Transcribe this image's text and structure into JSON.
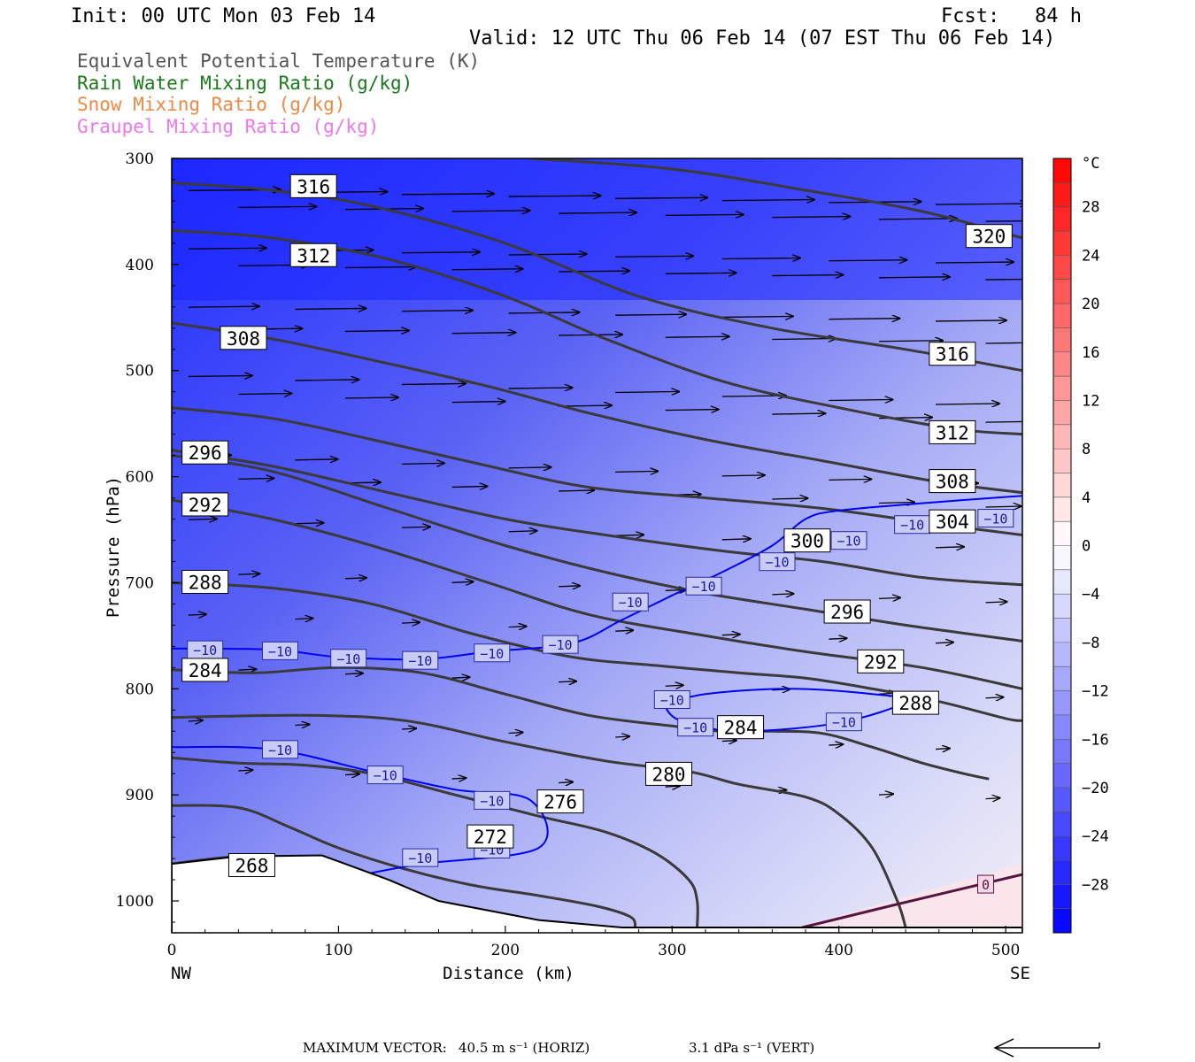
{
  "header": {
    "init": "Init: 00 UTC Mon 03 Feb 14",
    "fcst": "Fcst:   84 h",
    "valid": "Valid: 12 UTC Thu 06 Feb 14 (07 EST Thu 06 Feb 14)"
  },
  "legend": [
    {
      "text": "Equivalent Potential Temperature (K)",
      "color": "#555555"
    },
    {
      "text": "Rain Water Mixing Ratio (g/kg)",
      "color": "#1a7a1a"
    },
    {
      "text": "Snow Mixing Ratio (g/kg)",
      "color": "#ee8844"
    },
    {
      "text": "Graupel Mixing Ratio (g/kg)",
      "color": "#ee77ee"
    }
  ],
  "footer": {
    "max_vector_label": "MAXIMUM VECTOR:",
    "horiz": "40.5 m s⁻¹ (HORIZ)",
    "vert": "3.1 dPa s⁻¹ (VERT)"
  },
  "chart_data": {
    "type": "heatmap",
    "title": "",
    "xlabel": "Distance (km)",
    "ylabel": "Pressure (hPa)",
    "x_left_label": "NW",
    "x_right_label": "SE",
    "xlim": [
      0,
      510
    ],
    "ylim": [
      1030,
      300
    ],
    "x_ticks": [
      0,
      100,
      200,
      300,
      400,
      500
    ],
    "y_ticks": [
      300,
      400,
      500,
      600,
      700,
      800,
      900,
      1000
    ],
    "colorbar": {
      "unit": "°C",
      "range": [
        -32,
        32
      ],
      "tick_values": [
        28,
        24,
        20,
        16,
        12,
        8,
        4,
        0,
        -4,
        -8,
        -12,
        -16,
        -20,
        -24,
        -28
      ],
      "tick_labels": [
        "28",
        "24",
        "20",
        "16",
        "12",
        "8",
        "4",
        "0",
        "−4",
        "−8",
        "−12",
        "−16",
        "−20",
        "−24",
        "−28"
      ],
      "cold_color": "#0000ff",
      "zero_color": "#ffffff",
      "warm_color": "#ff0000"
    },
    "terrain_surface": [
      [
        0,
        965
      ],
      [
        40,
        958
      ],
      [
        90,
        957
      ],
      [
        130,
        980
      ],
      [
        160,
        1000
      ],
      [
        220,
        1018
      ],
      [
        270,
        1025
      ],
      [
        510,
        1025
      ]
    ],
    "theta_e_contours": [
      {
        "label": "320",
        "points": [
          [
            215,
            300
          ],
          [
            300,
            310
          ],
          [
            380,
            330
          ],
          [
            450,
            350
          ],
          [
            510,
            375
          ]
        ],
        "label_at": [
          490,
          374
        ]
      },
      {
        "label": "316",
        "points": [
          [
            0,
            323
          ],
          [
            60,
            330
          ],
          [
            120,
            345
          ],
          [
            200,
            380
          ],
          [
            280,
            430
          ],
          [
            360,
            460
          ],
          [
            440,
            480
          ],
          [
            510,
            500
          ]
        ],
        "label_at": [
          85,
          327
        ]
      },
      {
        "label": "316",
        "points": [],
        "label_at": [
          468,
          485
        ]
      },
      {
        "label": "312",
        "points": [
          [
            0,
            368
          ],
          [
            60,
            375
          ],
          [
            130,
            395
          ],
          [
            200,
            430
          ],
          [
            260,
            470
          ],
          [
            330,
            510
          ],
          [
            400,
            535
          ],
          [
            470,
            555
          ],
          [
            510,
            560
          ]
        ],
        "label_at": [
          85,
          392
        ]
      },
      {
        "label": "312",
        "points": [],
        "label_at": [
          468,
          559
        ]
      },
      {
        "label": "308",
        "points": [
          [
            0,
            455
          ],
          [
            60,
            470
          ],
          [
            120,
            490
          ],
          [
            190,
            515
          ],
          [
            250,
            540
          ],
          [
            320,
            565
          ],
          [
            390,
            585
          ],
          [
            460,
            605
          ],
          [
            510,
            615
          ]
        ],
        "label_at": [
          43,
          470
        ]
      },
      {
        "label": "308",
        "points": [],
        "label_at": [
          468,
          605
        ]
      },
      {
        "label": "304",
        "points": [
          [
            0,
            535
          ],
          [
            60,
            545
          ],
          [
            120,
            565
          ],
          [
            190,
            590
          ],
          [
            250,
            610
          ],
          [
            320,
            620
          ],
          [
            390,
            630
          ],
          [
            460,
            645
          ],
          [
            510,
            655
          ]
        ],
        "label_at": [
          468,
          643
        ]
      },
      {
        "label": "300",
        "points": [
          [
            0,
            575
          ],
          [
            60,
            590
          ],
          [
            130,
            615
          ],
          [
            200,
            640
          ],
          [
            260,
            655
          ],
          [
            330,
            670
          ],
          [
            390,
            680
          ],
          [
            450,
            695
          ],
          [
            510,
            702
          ]
        ],
        "label_at": [
          381,
          661
        ]
      },
      {
        "label": "296",
        "points": [
          [
            0,
            580
          ],
          [
            60,
            595
          ],
          [
            130,
            630
          ],
          [
            200,
            665
          ],
          [
            260,
            690
          ],
          [
            320,
            710
          ],
          [
            380,
            725
          ],
          [
            440,
            740
          ],
          [
            510,
            755
          ]
        ],
        "label_at": [
          20,
          578
        ]
      },
      {
        "label": "296",
        "points": [],
        "label_at": [
          405,
          728
        ]
      },
      {
        "label": "292",
        "points": [
          [
            0,
            622
          ],
          [
            60,
            640
          ],
          [
            120,
            665
          ],
          [
            190,
            700
          ],
          [
            250,
            730
          ],
          [
            320,
            750
          ],
          [
            380,
            765
          ],
          [
            450,
            780
          ],
          [
            510,
            800
          ]
        ],
        "label_at": [
          20,
          627
        ]
      },
      {
        "label": "292",
        "points": [],
        "label_at": [
          425,
          775
        ]
      },
      {
        "label": "288",
        "points": [
          [
            0,
            700
          ],
          [
            60,
            705
          ],
          [
            120,
            720
          ],
          [
            180,
            748
          ],
          [
            240,
            770
          ],
          [
            290,
            778
          ],
          [
            340,
            785
          ],
          [
            380,
            790
          ],
          [
            420,
            800
          ],
          [
            460,
            812
          ],
          [
            500,
            828
          ],
          [
            510,
            830
          ]
        ],
        "label_at": [
          20,
          700
        ]
      },
      {
        "label": "288",
        "points": [],
        "label_at": [
          446,
          814
        ]
      },
      {
        "label": "284",
        "points": [
          [
            0,
            782
          ],
          [
            50,
            785
          ],
          [
            100,
            780
          ],
          [
            150,
            785
          ],
          [
            200,
            805
          ],
          [
            250,
            825
          ],
          [
            300,
            835
          ],
          [
            330,
            840
          ],
          [
            360,
            840
          ],
          [
            390,
            842
          ],
          [
            420,
            855
          ],
          [
            450,
            870
          ],
          [
            475,
            880
          ],
          [
            490,
            885
          ]
        ],
        "label_at": [
          20,
          783
        ]
      },
      {
        "label": "284",
        "points": [],
        "label_at": [
          341,
          837
        ]
      },
      {
        "label": "280",
        "points": [
          [
            0,
            827
          ],
          [
            80,
            825
          ],
          [
            140,
            830
          ],
          [
            200,
            850
          ],
          [
            260,
            868
          ],
          [
            310,
            878
          ],
          [
            340,
            890
          ],
          [
            380,
            902
          ],
          [
            400,
            918
          ],
          [
            420,
            950
          ],
          [
            435,
            1000
          ],
          [
            440,
            1025
          ]
        ],
        "label_at": [
          298,
          881
        ]
      },
      {
        "label": "276",
        "points": [
          [
            0,
            865
          ],
          [
            40,
            870
          ],
          [
            80,
            872
          ],
          [
            120,
            880
          ],
          [
            170,
            900
          ],
          [
            220,
            920
          ],
          [
            260,
            935
          ],
          [
            290,
            955
          ],
          [
            310,
            980
          ],
          [
            315,
            1000
          ],
          [
            315,
            1025
          ]
        ],
        "label_at": [
          233,
          907
        ]
      },
      {
        "label": "272",
        "points": [
          [
            0,
            910
          ],
          [
            40,
            912
          ],
          [
            70,
            930
          ],
          [
            100,
            950
          ],
          [
            140,
            970
          ],
          [
            180,
            985
          ],
          [
            220,
            995
          ],
          [
            255,
            1005
          ],
          [
            275,
            1015
          ],
          [
            278,
            1025
          ]
        ],
        "label_at": [
          191,
          940
        ]
      },
      {
        "label": "268",
        "points": [
          [
            0,
            965
          ],
          [
            40,
            958
          ],
          [
            70,
            960
          ]
        ],
        "label_at": [
          48,
          967
        ]
      }
    ],
    "isotherm_minus10": {
      "label": "−10",
      "label_positions": [
        [
          20,
          764
        ],
        [
          65,
          765
        ],
        [
          106,
          772
        ],
        [
          149,
          774
        ],
        [
          192,
          767
        ],
        [
          233,
          759
        ],
        [
          275,
          719
        ],
        [
          319,
          704
        ],
        [
          363,
          681
        ],
        [
          406,
          661
        ],
        [
          444,
          646
        ],
        [
          494,
          640
        ],
        [
          300,
          811
        ],
        [
          314,
          837
        ],
        [
          403,
          832
        ],
        [
          65,
          858
        ],
        [
          128,
          882
        ],
        [
          192,
          906
        ],
        [
          192,
          952
        ],
        [
          149,
          960
        ]
      ]
    },
    "isotherm_zero": {
      "label": "0",
      "label_at": [
        488,
        985
      ]
    }
  }
}
